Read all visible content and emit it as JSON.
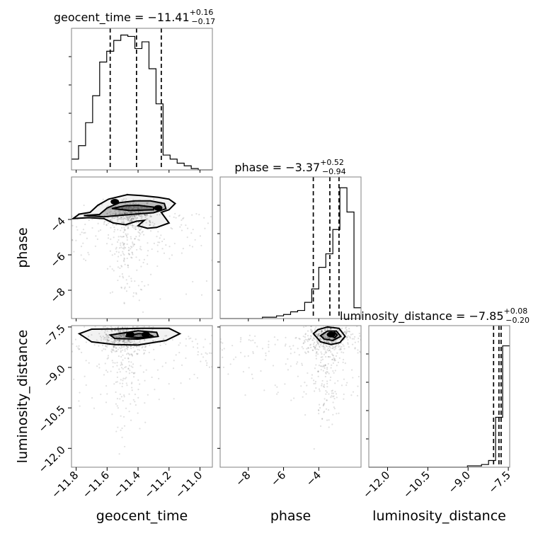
{
  "chart_data": {
    "type": "corner",
    "parameters": [
      "geocent_time",
      "phase",
      "luminosity_distance"
    ],
    "grid": true,
    "panel_titles": [
      {
        "param": "geocent_time",
        "lhs": "geocent_time = ",
        "median": "−11.41",
        "plus": "+0.16",
        "minus": "−0.17"
      },
      {
        "param": "phase",
        "lhs": "phase = ",
        "median": "−3.37",
        "plus": "+0.52",
        "minus": "−0.94"
      },
      {
        "param": "luminosity_distance",
        "lhs": "luminosity_distance = ",
        "median": "−7.85",
        "plus": "+0.08",
        "minus": "−0.20"
      }
    ],
    "axes": {
      "geocent_time": {
        "label": "geocent_time",
        "range": [
          -11.83,
          -10.92
        ],
        "ticks": [
          -11.8,
          -11.6,
          -11.4,
          -11.2,
          -11.0
        ],
        "tick_labels": [
          "−11.8",
          "−11.6",
          "−11.4",
          "−11.2",
          "−11.0"
        ]
      },
      "phase": {
        "label": "phase",
        "range": [
          -9.6,
          -1.6
        ],
        "ticks": [
          -8,
          -6,
          -4
        ],
        "tick_labels": [
          "−8",
          "−6",
          "−4"
        ]
      },
      "luminosity_distance": {
        "label": "luminosity_distance",
        "range": [
          -12.7,
          -7.45
        ],
        "ticks": [
          -12.0,
          -10.5,
          -9.0,
          -7.5
        ],
        "tick_labels": [
          "−12.0",
          "−10.5",
          "−9.0",
          "−7.5"
        ]
      }
    },
    "histograms": [
      {
        "param": "geocent_time",
        "bins": [
          -11.83,
          -11.7845,
          -11.739,
          -11.6935,
          -11.648,
          -11.6025,
          -11.557,
          -11.5115,
          -11.466,
          -11.4205,
          -11.375,
          -11.3295,
          -11.284,
          -11.2385,
          -11.193,
          -11.1475,
          -11.102,
          -11.0565,
          -11.011,
          -10.9655,
          -10.92
        ],
        "counts": [
          0.08,
          0.18,
          0.35,
          0.55,
          0.8,
          0.88,
          0.96,
          1.0,
          0.99,
          0.9,
          0.95,
          0.75,
          0.49,
          0.11,
          0.08,
          0.05,
          0.03,
          0.01,
          0.0,
          0.0
        ],
        "quantiles": [
          -11.58,
          -11.41,
          -11.25
        ]
      },
      {
        "param": "phase",
        "bins": [
          -9.6,
          -9.2,
          -8.8,
          -8.4,
          -8.0,
          -7.6,
          -7.2,
          -6.8,
          -6.4,
          -6.0,
          -5.6,
          -5.2,
          -4.8,
          -4.4,
          -4.0,
          -3.6,
          -3.2,
          -2.8,
          -2.4,
          -2.0,
          -1.6
        ],
        "counts": [
          0.0,
          0.0,
          0.0,
          0.0,
          0.0,
          0.0,
          0.01,
          0.01,
          0.02,
          0.03,
          0.05,
          0.06,
          0.12,
          0.22,
          0.38,
          0.48,
          0.66,
          0.97,
          0.79,
          0.08
        ],
        "quantiles": [
          -4.31,
          -3.37,
          -2.85
        ]
      },
      {
        "param": "luminosity_distance",
        "bins": [
          -12.7,
          -12.4375,
          -12.175,
          -11.9125,
          -11.65,
          -11.3875,
          -11.125,
          -10.8625,
          -10.6,
          -10.3375,
          -10.075,
          -9.8125,
          -9.55,
          -9.2875,
          -9.025,
          -8.7625,
          -8.5,
          -8.2375,
          -7.975,
          -7.7125,
          -7.45
        ],
        "counts": [
          0.0,
          0.0,
          0.0,
          0.0,
          0.0,
          0.0,
          0.0,
          0.0,
          0.0,
          0.0,
          0.0,
          0.0,
          0.0,
          0.0,
          0.01,
          0.01,
          0.02,
          0.05,
          0.37,
          0.9
        ],
        "quantiles": [
          -8.05,
          -7.85,
          -7.77
        ]
      }
    ],
    "density_panels": [
      {
        "x": "geocent_time",
        "y": "phase",
        "contours": [
          [
            [
              -11.82,
              -3.95
            ],
            [
              -11.78,
              -3.7
            ],
            [
              -11.71,
              -3.6
            ],
            [
              -11.66,
              -3.2
            ],
            [
              -11.59,
              -2.85
            ],
            [
              -11.47,
              -2.6
            ],
            [
              -11.38,
              -2.65
            ],
            [
              -11.27,
              -2.75
            ],
            [
              -11.2,
              -2.85
            ],
            [
              -11.16,
              -3.1
            ],
            [
              -11.2,
              -3.45
            ],
            [
              -11.25,
              -3.6
            ],
            [
              -11.2,
              -4.2
            ],
            [
              -11.28,
              -4.45
            ],
            [
              -11.34,
              -4.5
            ],
            [
              -11.4,
              -4.35
            ],
            [
              -11.36,
              -4.05
            ],
            [
              -11.41,
              -4.1
            ],
            [
              -11.48,
              -4.3
            ],
            [
              -11.56,
              -4.2
            ],
            [
              -11.62,
              -3.95
            ],
            [
              -11.72,
              -3.9
            ],
            [
              -11.82,
              -3.95
            ]
          ],
          [
            [
              -11.75,
              -3.78
            ],
            [
              -11.65,
              -3.72
            ],
            [
              -11.6,
              -3.35
            ],
            [
              -11.52,
              -3.05
            ],
            [
              -11.42,
              -2.95
            ],
            [
              -11.32,
              -2.95
            ],
            [
              -11.23,
              -3.1
            ],
            [
              -11.22,
              -3.4
            ],
            [
              -11.3,
              -3.62
            ],
            [
              -11.45,
              -3.72
            ],
            [
              -11.62,
              -3.85
            ],
            [
              -11.75,
              -3.78
            ]
          ],
          [
            [
              -11.57,
              -3.38
            ],
            [
              -11.48,
              -3.22
            ],
            [
              -11.4,
              -3.2
            ],
            [
              -11.3,
              -3.3
            ],
            [
              -11.3,
              -3.45
            ],
            [
              -11.45,
              -3.5
            ],
            [
              -11.57,
              -3.38
            ]
          ]
        ],
        "cores": [
          [
            -11.55,
            -3.0
          ],
          [
            -11.27,
            -3.35
          ]
        ]
      },
      {
        "x": "geocent_time",
        "y": "luminosity_distance",
        "contours": [
          [
            [
              -11.78,
              -7.75
            ],
            [
              -11.7,
              -7.58
            ],
            [
              -11.55,
              -7.57
            ],
            [
              -11.38,
              -7.55
            ],
            [
              -11.2,
              -7.55
            ],
            [
              -11.13,
              -7.75
            ],
            [
              -11.22,
              -8.0
            ],
            [
              -11.4,
              -8.17
            ],
            [
              -11.55,
              -8.15
            ],
            [
              -11.7,
              -8.05
            ],
            [
              -11.78,
              -7.75
            ]
          ],
          [
            [
              -11.58,
              -7.8
            ],
            [
              -11.4,
              -7.64
            ],
            [
              -11.28,
              -7.7
            ],
            [
              -11.27,
              -7.85
            ],
            [
              -11.4,
              -7.95
            ],
            [
              -11.55,
              -7.93
            ],
            [
              -11.58,
              -7.8
            ]
          ],
          [
            [
              -11.48,
              -7.85
            ],
            [
              -11.4,
              -7.75
            ],
            [
              -11.34,
              -7.75
            ],
            [
              -11.3,
              -7.85
            ],
            [
              -11.4,
              -7.9
            ],
            [
              -11.48,
              -7.85
            ]
          ]
        ],
        "cores": [
          [
            -11.45,
            -7.78
          ],
          [
            -11.35,
            -7.78
          ]
        ]
      },
      {
        "x": "phase",
        "y": "luminosity_distance",
        "contours": [
          [
            [
              -4.3,
              -7.75
            ],
            [
              -4.05,
              -7.6
            ],
            [
              -3.5,
              -7.5
            ],
            [
              -2.85,
              -7.55
            ],
            [
              -2.5,
              -7.85
            ],
            [
              -2.8,
              -8.08
            ],
            [
              -3.3,
              -8.15
            ],
            [
              -3.9,
              -8.05
            ],
            [
              -4.3,
              -7.75
            ]
          ],
          [
            [
              -3.9,
              -7.82
            ],
            [
              -3.5,
              -7.65
            ],
            [
              -3.0,
              -7.65
            ],
            [
              -2.75,
              -7.85
            ],
            [
              -3.2,
              -8.0
            ],
            [
              -3.7,
              -7.95
            ],
            [
              -3.9,
              -7.82
            ]
          ],
          [
            [
              -3.4,
              -7.78
            ],
            [
              -3.1,
              -7.7
            ],
            [
              -2.95,
              -7.8
            ],
            [
              -3.1,
              -7.9
            ],
            [
              -3.4,
              -7.78
            ]
          ]
        ],
        "cores": [
          [
            -3.3,
            -7.78
          ]
        ]
      }
    ]
  }
}
